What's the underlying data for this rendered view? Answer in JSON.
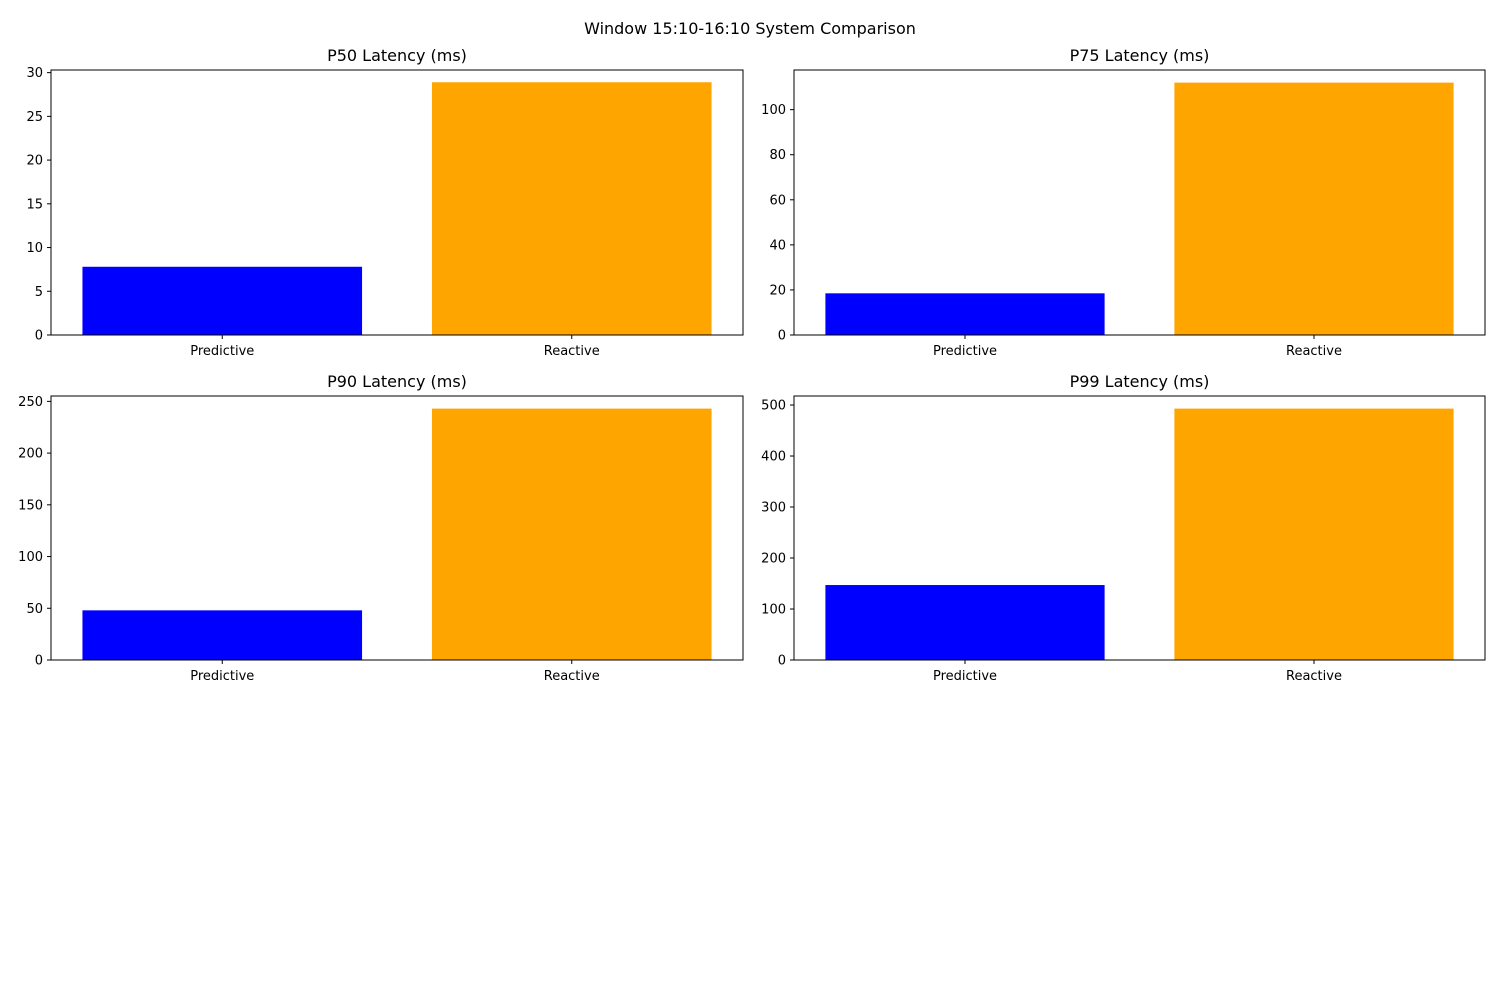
{
  "figure": {
    "title": "Window 15:10-16:10 System Comparison"
  },
  "chart_data": [
    {
      "type": "bar",
      "title": "P50 Latency (ms)",
      "categories": [
        "Predictive",
        "Reactive"
      ],
      "values": [
        7.8,
        28.9
      ],
      "colors": [
        "#0000ff",
        "#ffa500"
      ],
      "xlabel": "",
      "ylabel": "",
      "ylim": [
        0,
        30.3
      ],
      "yticks": [
        0,
        5,
        10,
        15,
        20,
        25,
        30
      ],
      "grid": false
    },
    {
      "type": "bar",
      "title": "P75 Latency (ms)",
      "categories": [
        "Predictive",
        "Reactive"
      ],
      "values": [
        18.5,
        112.0
      ],
      "colors": [
        "#0000ff",
        "#ffa500"
      ],
      "xlabel": "",
      "ylabel": "",
      "ylim": [
        0,
        117.6
      ],
      "yticks": [
        0,
        20,
        40,
        60,
        80,
        100
      ],
      "grid": false
    },
    {
      "type": "bar",
      "title": "P90 Latency (ms)",
      "categories": [
        "Predictive",
        "Reactive"
      ],
      "values": [
        48.0,
        243.0
      ],
      "colors": [
        "#0000ff",
        "#ffa500"
      ],
      "xlabel": "",
      "ylabel": "",
      "ylim": [
        0,
        255.2
      ],
      "yticks": [
        0,
        50,
        100,
        150,
        200,
        250
      ],
      "grid": false
    },
    {
      "type": "bar",
      "title": "P99 Latency (ms)",
      "categories": [
        "Predictive",
        "Reactive"
      ],
      "values": [
        147.0,
        493.0
      ],
      "colors": [
        "#0000ff",
        "#ffa500"
      ],
      "xlabel": "",
      "ylabel": "",
      "ylim": [
        0,
        517.7
      ],
      "yticks": [
        0,
        100,
        200,
        300,
        400,
        500
      ],
      "grid": false
    }
  ]
}
